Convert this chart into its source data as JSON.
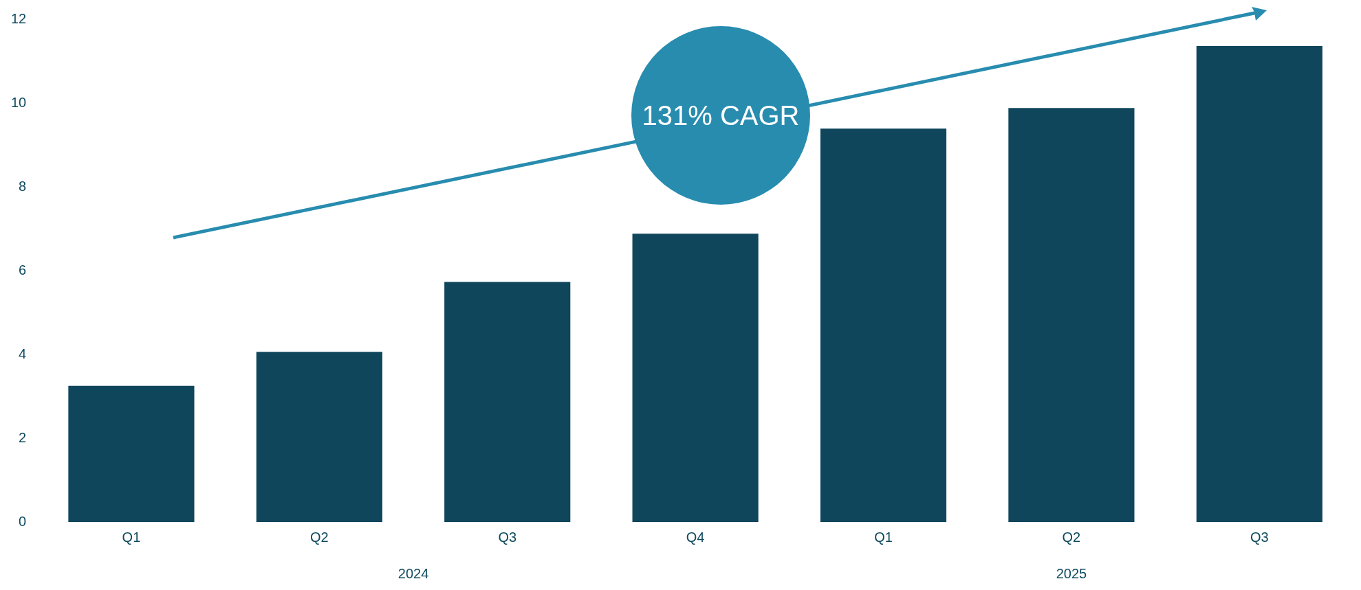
{
  "chart_data": {
    "type": "bar",
    "categories": [
      "Q1",
      "Q2",
      "Q3",
      "Q4",
      "Q1",
      "Q2",
      "Q3"
    ],
    "values": [
      3.25,
      4.06,
      5.73,
      6.88,
      9.39,
      9.88,
      11.36
    ],
    "color": "#10465c",
    "ylim": [
      0,
      12
    ],
    "yticks": [
      0,
      2,
      4,
      6,
      8,
      10,
      12
    ],
    "grid": false,
    "legend": false,
    "annotations": [
      "131% CAGR",
      "2024",
      "2025"
    ]
  }
}
